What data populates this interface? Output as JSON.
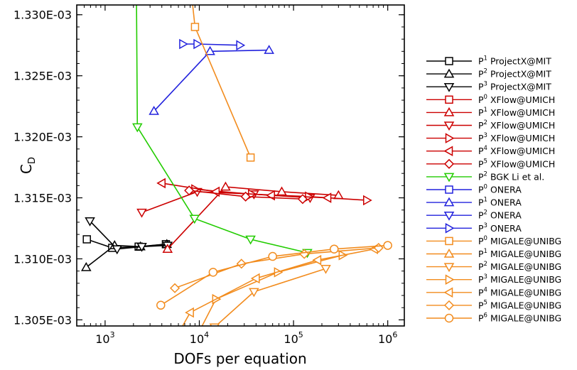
{
  "chart_data": {
    "type": "line",
    "title": "",
    "xlabel": "DOFs per equation",
    "ylabel": "C",
    "ylabel_sub": "D",
    "x_scale": "log",
    "xlim": [
      500,
      1500000
    ],
    "ylim": [
      0.0013045,
      0.0013308
    ],
    "x_ticks": [
      {
        "value": 1000,
        "base": "10",
        "exp": "3"
      },
      {
        "value": 10000,
        "base": "10",
        "exp": "4"
      },
      {
        "value": 100000,
        "base": "10",
        "exp": "5"
      },
      {
        "value": 1000000,
        "base": "10",
        "exp": "6"
      }
    ],
    "y_ticks": [
      {
        "value": 0.001305,
        "label": "1.305E-03"
      },
      {
        "value": 0.00131,
        "label": "1.310E-03"
      },
      {
        "value": 0.001315,
        "label": "1.315E-03"
      },
      {
        "value": 0.00132,
        "label": "1.320E-03"
      },
      {
        "value": 0.001325,
        "label": "1.325E-03"
      },
      {
        "value": 0.00133,
        "label": "1.330E-03"
      }
    ],
    "grid": false,
    "legend_position": "right",
    "series": [
      {
        "name_base": "P",
        "name_sup": "1",
        "name_rest": " ProjectX@MIT",
        "color": "#000000",
        "marker": "square",
        "x": [
          640,
          1190,
          2270,
          4420
        ],
        "y": [
          0.0013116,
          0.0013109,
          0.001311,
          0.0013112
        ]
      },
      {
        "name_base": "P",
        "name_sup": "2",
        "name_rest": " ProjectX@MIT",
        "color": "#000000",
        "marker": "triangle-up",
        "x": [
          630,
          1260,
          2370,
          4520
        ],
        "y": [
          0.0013093,
          0.0013111,
          0.001311,
          0.0013112
        ]
      },
      {
        "name_base": "P",
        "name_sup": "3",
        "name_rest": " ProjectX@MIT",
        "color": "#000000",
        "marker": "triangle-down",
        "x": [
          690,
          1340,
          2450,
          4600
        ],
        "y": [
          0.0013131,
          0.0013108,
          0.001311,
          0.0013111
        ]
      },
      {
        "name_base": "P",
        "name_sup": "0",
        "name_rest": " XFlow@UMICH",
        "color": "#cc0000",
        "marker": "square",
        "x": [],
        "y": []
      },
      {
        "name_base": "P",
        "name_sup": "1",
        "name_rest": " XFlow@UMICH",
        "color": "#cc0000",
        "marker": "triangle-up",
        "x": [
          4600,
          19000,
          75000,
          300000
        ],
        "y": [
          0.0013108,
          0.0013159,
          0.0013155,
          0.0013152
        ]
      },
      {
        "name_base": "P",
        "name_sup": "2",
        "name_rest": " XFlow@UMICH",
        "color": "#cc0000",
        "marker": "triangle-down",
        "x": [
          2450,
          9500,
          38000,
          150000
        ],
        "y": [
          0.0013138,
          0.0013155,
          0.0013153,
          0.001315
        ]
      },
      {
        "name_base": "P",
        "name_sup": "3",
        "name_rest": " XFlow@UMICH",
        "color": "#cc0000",
        "marker": "triangle-right",
        "x": [
          9000,
          36000,
          145000,
          600000
        ],
        "y": [
          0.0013157,
          0.0013153,
          0.0013151,
          0.0013148
        ]
      },
      {
        "name_base": "P",
        "name_sup": "4",
        "name_rest": " XFlow@UMICH",
        "color": "#cc0000",
        "marker": "triangle-left",
        "x": [
          4000,
          15000,
          58000,
          230000
        ],
        "y": [
          0.0013162,
          0.0013155,
          0.0013152,
          0.001315
        ]
      },
      {
        "name_base": "P",
        "name_sup": "5",
        "name_rest": " XFlow@UMICH",
        "color": "#cc0000",
        "marker": "diamond",
        "x": [
          7800,
          31000,
          125000
        ],
        "y": [
          0.0013156,
          0.0013151,
          0.0013149
        ]
      },
      {
        "name_base": "P",
        "name_sup": "2",
        "name_rest": " BGK Li et al.",
        "color": "#22cc00",
        "marker": "triangle-down",
        "x": [
          2150,
          2200,
          8900,
          35000,
          140000
        ],
        "y": [
          0.001332,
          0.0013208,
          0.0013133,
          0.0013116,
          0.0013105
        ]
      },
      {
        "name_base": "P",
        "name_sup": "0",
        "name_rest": " ONERA",
        "color": "#2222dd",
        "marker": "square",
        "x": [],
        "y": []
      },
      {
        "name_base": "P",
        "name_sup": "1",
        "name_rest": " ONERA",
        "color": "#2222dd",
        "marker": "triangle-up",
        "x": [
          3300,
          13000,
          55000
        ],
        "y": [
          0.0013221,
          0.001327,
          0.0013271
        ]
      },
      {
        "name_base": "P",
        "name_sup": "2",
        "name_rest": " ONERA",
        "color": "#2222dd",
        "marker": "triangle-down",
        "x": [],
        "y": []
      },
      {
        "name_base": "P",
        "name_sup": "3",
        "name_rest": " ONERA",
        "color": "#2222dd",
        "marker": "triangle-right",
        "x": [
          6700,
          9500,
          27000
        ],
        "y": [
          0.0013276,
          0.0013276,
          0.0013275
        ]
      },
      {
        "name_base": "P",
        "name_sup": "0",
        "name_rest": " MIGALE@UNIBG",
        "color": "#f28c1e",
        "marker": "square",
        "x": [
          7200,
          9000,
          35000
        ],
        "y": [
          0.001336,
          0.001329,
          0.0013183
        ]
      },
      {
        "name_base": "P",
        "name_sup": "1",
        "name_rest": " MIGALE@UNIBG",
        "color": "#f28c1e",
        "marker": "triangle-up",
        "x": [],
        "y": []
      },
      {
        "name_base": "P",
        "name_sup": "2",
        "name_rest": " MIGALE@UNIBG",
        "color": "#f28c1e",
        "marker": "triangle-down",
        "x": [
          12000,
          14500,
          38000,
          220000
        ],
        "y": [
          0.001303,
          0.0013044,
          0.0013073,
          0.0013092
        ]
      },
      {
        "name_base": "P",
        "name_sup": "3",
        "name_rest": " MIGALE@UNIBG",
        "color": "#f28c1e",
        "marker": "triangle-right",
        "x": [
          8500,
          15000,
          68000,
          330000
        ],
        "y": [
          0.001303,
          0.0013067,
          0.0013089,
          0.0013103
        ]
      },
      {
        "name_base": "P",
        "name_sup": "4",
        "name_rest": " MIGALE@UNIBG",
        "color": "#f28c1e",
        "marker": "triangle-left",
        "x": [
          4000,
          8000,
          40000,
          180000,
          720000
        ],
        "y": [
          0.0013015,
          0.0013056,
          0.0013084,
          0.0013099,
          0.0013108
        ]
      },
      {
        "name_base": "P",
        "name_sup": "5",
        "name_rest": " MIGALE@UNIBG",
        "color": "#f28c1e",
        "marker": "diamond",
        "x": [
          5500,
          28000,
          130000,
          800000
        ],
        "y": [
          0.0013076,
          0.0013096,
          0.0013104,
          0.0013109
        ]
      },
      {
        "name_base": "P",
        "name_sup": "6",
        "name_rest": " MIGALE@UNIBG",
        "color": "#f28c1e",
        "marker": "circle",
        "x": [
          3900,
          14000,
          60000,
          270000,
          1000000
        ],
        "y": [
          0.0013062,
          0.0013089,
          0.0013102,
          0.0013108,
          0.0013111
        ]
      }
    ]
  }
}
